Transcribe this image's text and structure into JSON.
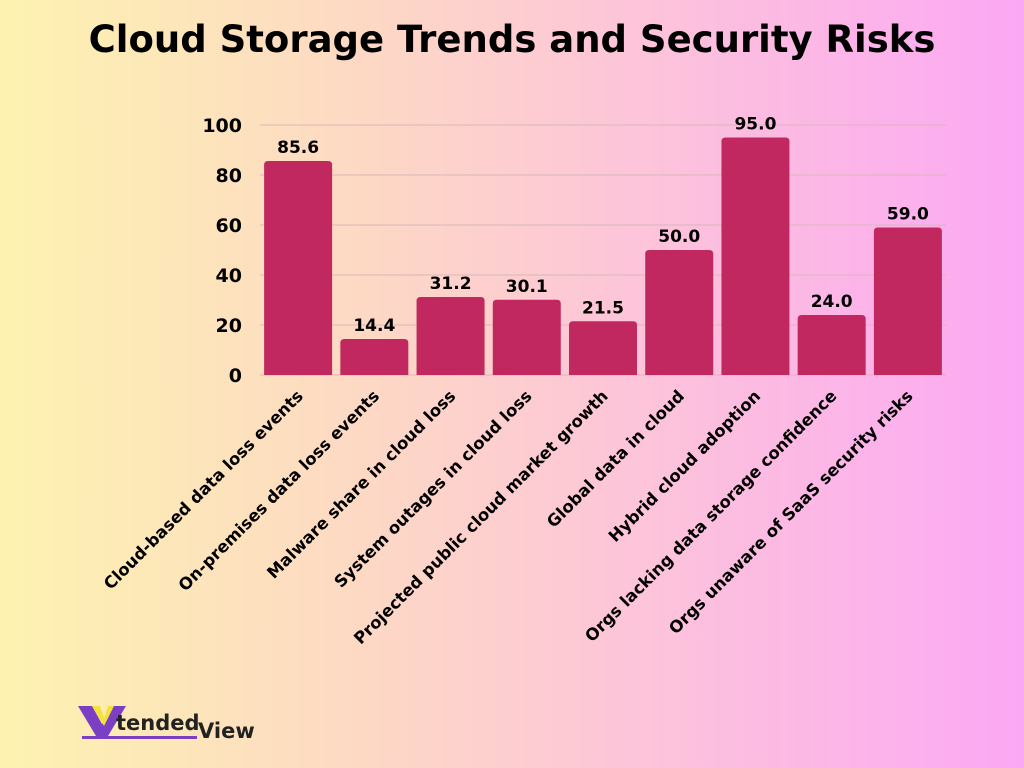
{
  "chart_data": {
    "type": "bar",
    "title": "Cloud Storage Trends and Security Risks",
    "categories": [
      "Cloud-based data loss events",
      "On-premises data loss events",
      "Malware share in cloud loss",
      "System outages in cloud loss",
      "Projected public cloud market growth",
      "Global data in cloud",
      "Hybrid cloud adoption",
      "Orgs lacking data storage confidence",
      "Orgs unaware of SaaS security risks"
    ],
    "values": [
      85.6,
      14.4,
      31.2,
      30.1,
      21.5,
      50.0,
      95.0,
      24.0,
      59.0
    ],
    "data_labels": [
      "85.6",
      "14.4",
      "31.2",
      "30.1",
      "21.5",
      "50.0",
      "95.0",
      "24.0",
      "59.0"
    ],
    "xlabel": "",
    "ylabel": "",
    "ylim": [
      0,
      100
    ],
    "yticks": [
      "0",
      "20",
      "40",
      "60",
      "80",
      "100"
    ],
    "grid": true,
    "bar_color": "#c0285f"
  },
  "logo": {
    "text_a": "tended",
    "text_b": "View"
  }
}
